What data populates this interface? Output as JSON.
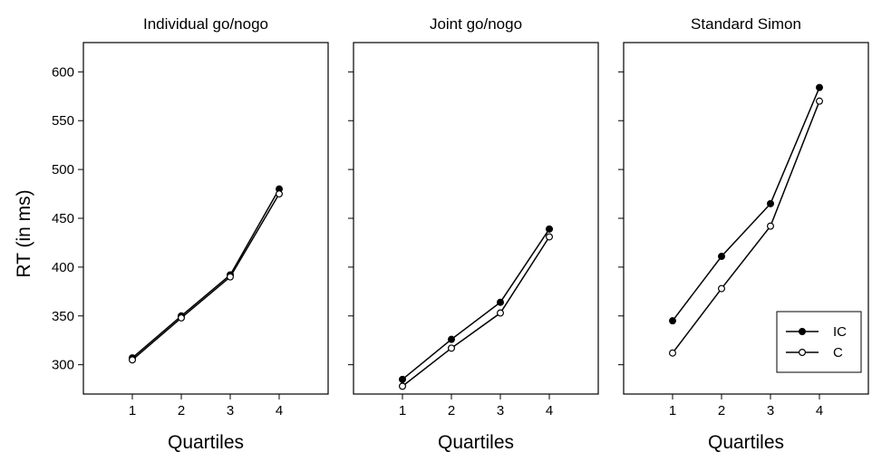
{
  "figure": {
    "ylabel": "RT (in ms)"
  },
  "chart_data": [
    {
      "type": "line",
      "title": "Individual go/nogo",
      "xlabel": "Quartiles",
      "ylabel": "RT (in ms)",
      "x": [
        1,
        2,
        3,
        4
      ],
      "xlim": [
        0,
        5
      ],
      "ylim": [
        270,
        630
      ],
      "yticks": [
        300,
        350,
        400,
        450,
        500,
        550,
        600
      ],
      "series": [
        {
          "name": "IC",
          "marker": "filled-circle",
          "values": [
            307,
            350,
            392,
            480
          ]
        },
        {
          "name": "C",
          "marker": "open-circle",
          "values": [
            305,
            348,
            390,
            475
          ]
        }
      ]
    },
    {
      "type": "line",
      "title": "Joint go/nogo",
      "xlabel": "Quartiles",
      "x": [
        1,
        2,
        3,
        4
      ],
      "xlim": [
        0,
        5
      ],
      "ylim": [
        270,
        630
      ],
      "series": [
        {
          "name": "IC",
          "marker": "filled-circle",
          "values": [
            285,
            326,
            364,
            439
          ]
        },
        {
          "name": "C",
          "marker": "open-circle",
          "values": [
            278,
            317,
            353,
            431
          ]
        }
      ]
    },
    {
      "type": "line",
      "title": "Standard Simon",
      "xlabel": "Quartiles",
      "x": [
        1,
        2,
        3,
        4
      ],
      "xlim": [
        0,
        5
      ],
      "ylim": [
        270,
        630
      ],
      "legend": "bottom-right",
      "series": [
        {
          "name": "IC",
          "marker": "filled-circle",
          "values": [
            345,
            411,
            465,
            584
          ]
        },
        {
          "name": "C",
          "marker": "open-circle",
          "values": [
            312,
            378,
            442,
            570
          ]
        }
      ]
    }
  ]
}
